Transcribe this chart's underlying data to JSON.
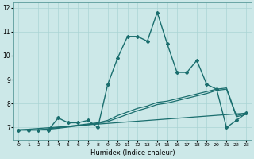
{
  "xlabel": "Humidex (Indice chaleur)",
  "xlim": [
    -0.5,
    23.5
  ],
  "ylim": [
    6.5,
    12.2
  ],
  "yticks": [
    7,
    8,
    9,
    10,
    11,
    12
  ],
  "xticks": [
    0,
    1,
    2,
    3,
    4,
    5,
    6,
    7,
    8,
    9,
    10,
    11,
    12,
    13,
    14,
    15,
    16,
    17,
    18,
    19,
    20,
    21,
    22,
    23
  ],
  "bg_color": "#cce8e8",
  "line_color": "#1a6e6e",
  "series_main": {
    "x": [
      0,
      1,
      2,
      3,
      4,
      5,
      6,
      7,
      8,
      9,
      10,
      11,
      12,
      13,
      14,
      15,
      16,
      17,
      18,
      19,
      20,
      21,
      22,
      23
    ],
    "y": [
      6.9,
      6.9,
      6.9,
      6.9,
      7.4,
      7.2,
      7.2,
      7.3,
      7.0,
      8.8,
      9.9,
      10.8,
      10.8,
      10.6,
      11.8,
      10.5,
      9.3,
      9.3,
      9.8,
      8.8,
      8.6,
      7.0,
      7.3,
      7.6
    ]
  },
  "series_avg1": {
    "x": [
      0,
      1,
      2,
      3,
      4,
      5,
      6,
      7,
      8,
      9,
      10,
      11,
      12,
      13,
      14,
      15,
      16,
      17,
      18,
      19,
      20,
      21,
      22,
      23
    ],
    "y": [
      6.9,
      6.9,
      6.9,
      6.95,
      7.0,
      7.05,
      7.1,
      7.15,
      7.2,
      7.3,
      7.5,
      7.65,
      7.8,
      7.9,
      8.05,
      8.1,
      8.2,
      8.3,
      8.4,
      8.5,
      8.6,
      8.65,
      7.5,
      7.6
    ]
  },
  "series_avg2": {
    "x": [
      0,
      1,
      2,
      3,
      4,
      5,
      6,
      7,
      8,
      9,
      10,
      11,
      12,
      13,
      14,
      15,
      16,
      17,
      18,
      19,
      20,
      21,
      22,
      23
    ],
    "y": [
      6.9,
      6.9,
      6.9,
      6.93,
      6.97,
      7.02,
      7.07,
      7.12,
      7.17,
      7.25,
      7.4,
      7.55,
      7.7,
      7.82,
      7.96,
      8.02,
      8.12,
      8.22,
      8.32,
      8.42,
      8.55,
      8.6,
      7.45,
      7.55
    ]
  },
  "series_base": {
    "x": [
      0,
      23
    ],
    "y": [
      6.9,
      7.6
    ]
  }
}
